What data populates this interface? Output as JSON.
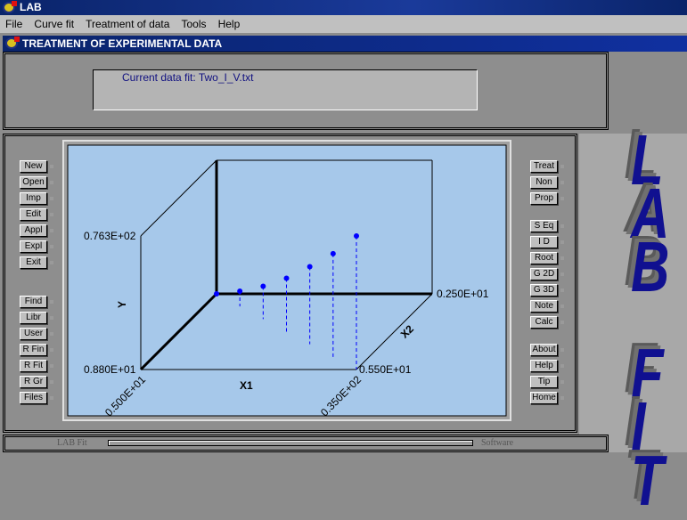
{
  "window": {
    "title": "LAB"
  },
  "menu": [
    "File",
    "Curve fit",
    "Treatment of data",
    "Tools",
    "Help"
  ],
  "subwindow": {
    "title": "TREATMENT OF EXPERIMENTAL DATA"
  },
  "info": {
    "current_fit": "Current data fit:  Two_I_V.txt"
  },
  "left_buttons": [
    [
      "New",
      "Open",
      "Imp",
      "Edit",
      "Appl",
      "Expl",
      "Exit"
    ],
    [
      "Find",
      "Libr",
      "User",
      "R Fin",
      "R Fit",
      "R Gr",
      "Files"
    ]
  ],
  "right_buttons": [
    [
      "Treat",
      "Non",
      "Prop"
    ],
    [
      "S Eq",
      "I D",
      "Root",
      "G 2D",
      "G 3D",
      "Note",
      "Calc"
    ],
    [
      "About",
      "Help",
      "Tip",
      "Home"
    ]
  ],
  "logo": {
    "text": "LAB FIT",
    "color": "#101090"
  },
  "status": {
    "left": "LAB Fit",
    "right": "Software",
    "progress": 1.0
  },
  "chart_data": {
    "type": "scatter3d",
    "xlabel": "X1",
    "ylabel": "Y",
    "zlabel": "X2",
    "x1_labels": [
      "0.500E+01",
      "0.350E+02"
    ],
    "x2_labels": [
      "0.550E+01",
      "0.250E+01"
    ],
    "y_labels": [
      "0.880E+01",
      "0.763E+02"
    ],
    "x1lim": [
      5,
      35
    ],
    "x2lim": [
      2.5,
      5.5
    ],
    "ylim": [
      8.8,
      76.3
    ],
    "points": [
      {
        "x1": 5,
        "x2": 2.5,
        "y": 8.8
      },
      {
        "x1": 10,
        "x2": 3.0,
        "y": 16.5
      },
      {
        "x1": 15,
        "x2": 3.5,
        "y": 25.4
      },
      {
        "x1": 20,
        "x2": 4.0,
        "y": 35.8
      },
      {
        "x1": 25,
        "x2": 4.5,
        "y": 48.0
      },
      {
        "x1": 30,
        "x2": 5.0,
        "y": 61.0
      },
      {
        "x1": 35,
        "x2": 5.5,
        "y": 76.3
      }
    ],
    "point_color": "#0000ff",
    "background": "#a6c8ea"
  }
}
